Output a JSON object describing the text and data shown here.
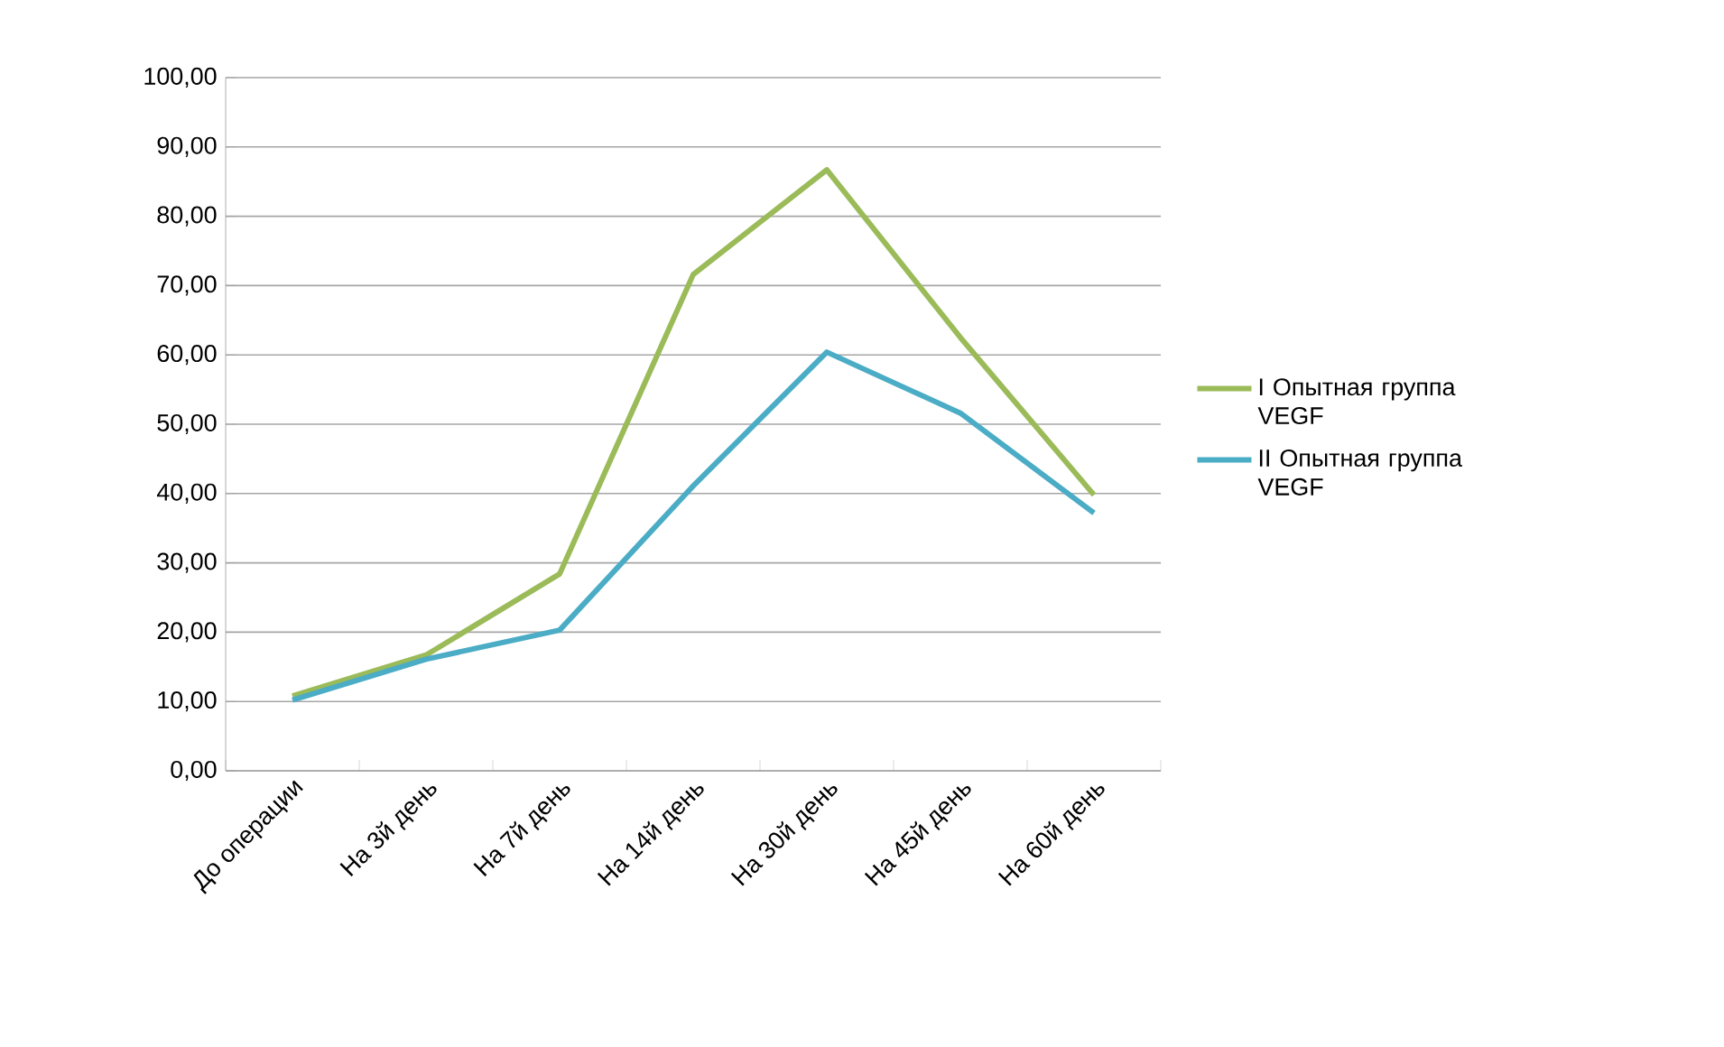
{
  "chart_data": {
    "type": "line",
    "categories": [
      "До операции",
      "На 3й день",
      "На 7й день",
      "На 14й день",
      "На 30й день",
      "На 45й день",
      "На 60й день"
    ],
    "series": [
      {
        "name": "I Опытная группа VEGF",
        "color": "#9bbb59",
        "values": [
          10.8,
          16.7,
          28.4,
          71.6,
          86.7,
          62.5,
          39.8
        ]
      },
      {
        "name": "II Опытная группа VEGF",
        "color": "#4bacc6",
        "values": [
          10.2,
          16.1,
          20.3,
          41.1,
          60.4,
          51.6,
          37.2
        ]
      }
    ],
    "ylim": [
      0,
      100
    ],
    "yticks": [
      {
        "value": 0,
        "label": "0,00"
      },
      {
        "value": 10,
        "label": "10,00"
      },
      {
        "value": 20,
        "label": "20,00"
      },
      {
        "value": 30,
        "label": "30,00"
      },
      {
        "value": 40,
        "label": "40,00"
      },
      {
        "value": 50,
        "label": "50,00"
      },
      {
        "value": 60,
        "label": "60,00"
      },
      {
        "value": 70,
        "label": "70,00"
      },
      {
        "value": 80,
        "label": "80,00"
      },
      {
        "value": 90,
        "label": "90,00"
      },
      {
        "value": 100,
        "label": "100,00"
      }
    ],
    "grid": "y",
    "legend": "right",
    "marker": "none",
    "line_style": "solid"
  }
}
